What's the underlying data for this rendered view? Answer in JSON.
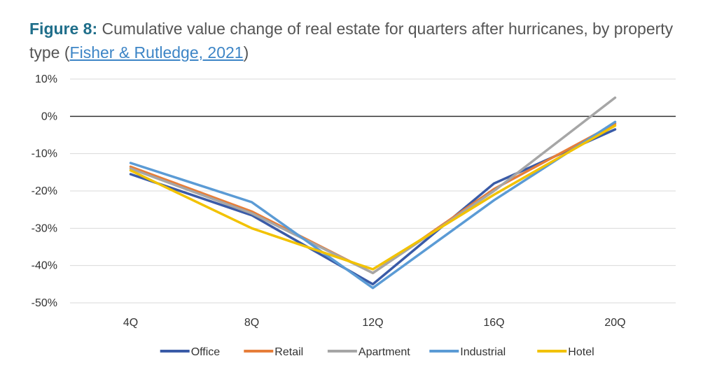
{
  "caption": {
    "figure_label": "Figure 8:",
    "text_before_link": " Cumulative value change of real estate for quarters after hurricanes, by property type (",
    "link_text": "Fisher & Rutledge, 2021",
    "text_after_link": ")"
  },
  "chart_data": {
    "type": "line",
    "categories": [
      "4Q",
      "8Q",
      "12Q",
      "16Q",
      "20Q"
    ],
    "ylim": [
      -50,
      10
    ],
    "yticks": [
      10,
      0,
      -10,
      -20,
      -30,
      -40,
      -50
    ],
    "ytick_labels": [
      "10%",
      "0%",
      "-10%",
      "-20%",
      "-30%",
      "-40%",
      "-50%"
    ],
    "grid": true,
    "legend_position": "bottom",
    "series": [
      {
        "name": "Office",
        "color": "#3a5ba7",
        "values": [
          -15.5,
          -26.5,
          -45,
          -18,
          -3.5
        ]
      },
      {
        "name": "Retail",
        "color": "#e67e3a",
        "values": [
          -13.5,
          -25.5,
          -42,
          -19.5,
          -2
        ]
      },
      {
        "name": "Apartment",
        "color": "#a6a6a6",
        "values": [
          -14,
          -26,
          -42,
          -20,
          5
        ]
      },
      {
        "name": "Industrial",
        "color": "#5b9bd5",
        "values": [
          -12.5,
          -23,
          -46,
          -22.5,
          -1.5
        ]
      },
      {
        "name": "Hotel",
        "color": "#f2c200",
        "values": [
          -14.5,
          -30,
          -41,
          -21,
          -2.5
        ]
      }
    ]
  }
}
